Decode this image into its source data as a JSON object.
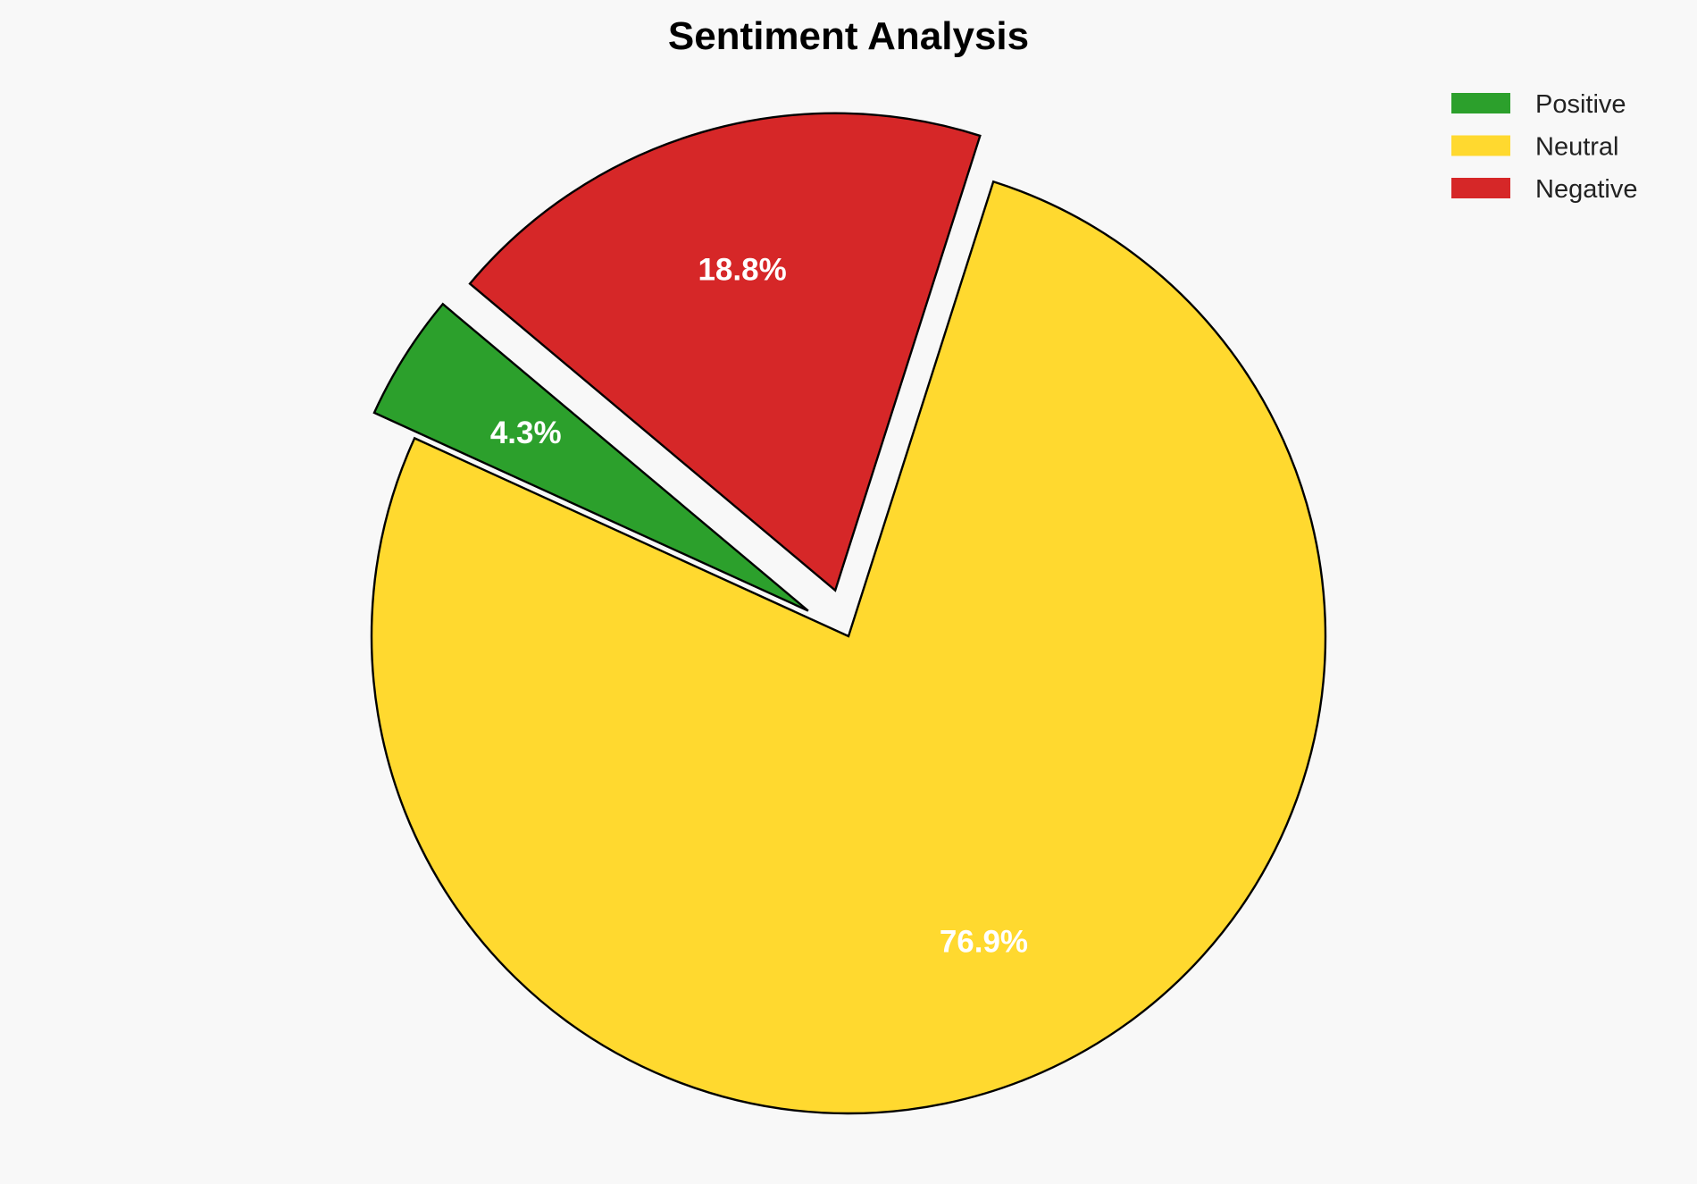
{
  "chart_data": {
    "type": "pie",
    "title": "Sentiment Analysis",
    "categories": [
      "Positive",
      "Neutral",
      "Negative"
    ],
    "values": [
      4.3,
      76.9,
      18.8
    ],
    "labels": [
      "4.3%",
      "76.9%",
      "18.8%"
    ],
    "colors": [
      "#2ca02c",
      "#ffd92f",
      "#d62728"
    ],
    "explode": [
      0.1,
      0,
      0.1
    ],
    "start_angle": 140,
    "direction": "counterclockwise",
    "edge_color": "#000000",
    "legend_placement": "top-right",
    "background": "#f8f8f8"
  }
}
